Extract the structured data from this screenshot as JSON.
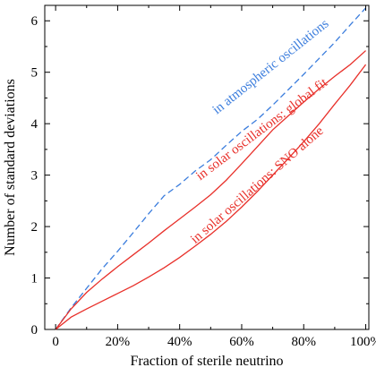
{
  "chart_data": {
    "type": "line",
    "title": "",
    "xlabel": "Fraction of sterile neutrino",
    "ylabel": "Number of standard deviations",
    "xlim": [
      0,
      1
    ],
    "ylim": [
      0,
      6.3
    ],
    "grid": false,
    "x_ticks": [
      {
        "value": 0,
        "label": "0"
      },
      {
        "value": 0.2,
        "label": "20%"
      },
      {
        "value": 0.4,
        "label": "40%"
      },
      {
        "value": 0.6,
        "label": "60%"
      },
      {
        "value": 0.8,
        "label": "80%"
      },
      {
        "value": 1.0,
        "label": "100%"
      }
    ],
    "y_ticks": [
      {
        "value": 0,
        "label": "0"
      },
      {
        "value": 1,
        "label": "1"
      },
      {
        "value": 2,
        "label": "2"
      },
      {
        "value": 3,
        "label": "3"
      },
      {
        "value": 4,
        "label": "4"
      },
      {
        "value": 5,
        "label": "5"
      },
      {
        "value": 6,
        "label": "6"
      }
    ],
    "series": [
      {
        "name": "in atmospheric oscillations",
        "color": "#3b7ddd",
        "style": "dashed",
        "x": [
          0,
          0.05,
          0.1,
          0.15,
          0.2,
          0.25,
          0.3,
          0.35,
          0.4,
          0.45,
          0.5,
          0.55,
          0.6,
          0.65,
          0.7,
          0.75,
          0.8,
          0.85,
          0.9,
          0.95,
          1.0
        ],
        "y": [
          0,
          0.42,
          0.8,
          1.18,
          1.52,
          1.88,
          2.25,
          2.6,
          2.82,
          3.08,
          3.3,
          3.58,
          3.85,
          4.08,
          4.36,
          4.66,
          4.96,
          5.27,
          5.58,
          5.92,
          6.25
        ]
      },
      {
        "name": "in solar oscillations: global fit",
        "color": "#e8302a",
        "style": "solid",
        "x": [
          0,
          0.05,
          0.1,
          0.15,
          0.2,
          0.25,
          0.3,
          0.35,
          0.4,
          0.45,
          0.5,
          0.55,
          0.6,
          0.65,
          0.7,
          0.75,
          0.8,
          0.85,
          0.9,
          0.95,
          1.0
        ],
        "y": [
          0,
          0.4,
          0.72,
          0.98,
          1.22,
          1.45,
          1.68,
          1.92,
          2.15,
          2.38,
          2.62,
          2.9,
          3.22,
          3.55,
          3.88,
          4.15,
          4.42,
          4.68,
          4.92,
          5.15,
          5.42
        ]
      },
      {
        "name": "in solar oscillations: SNO alone",
        "color": "#e8302a",
        "style": "solid",
        "x": [
          0,
          0.05,
          0.1,
          0.15,
          0.2,
          0.25,
          0.3,
          0.35,
          0.4,
          0.45,
          0.5,
          0.55,
          0.6,
          0.65,
          0.7,
          0.75,
          0.8,
          0.85,
          0.9,
          0.95,
          1.0
        ],
        "y": [
          0,
          0.24,
          0.4,
          0.55,
          0.7,
          0.85,
          1.02,
          1.2,
          1.4,
          1.62,
          1.85,
          2.1,
          2.38,
          2.68,
          3.0,
          3.32,
          3.65,
          4.0,
          4.38,
          4.75,
          5.15
        ]
      }
    ],
    "annotations": [
      {
        "text": "in atmospheric oscillations",
        "color": "#3b7ddd"
      },
      {
        "text": "in solar oscillations: global fit",
        "color": "#e8302a"
      },
      {
        "text": "in solar oscillations: SNO alone",
        "color": "#e8302a"
      }
    ]
  }
}
